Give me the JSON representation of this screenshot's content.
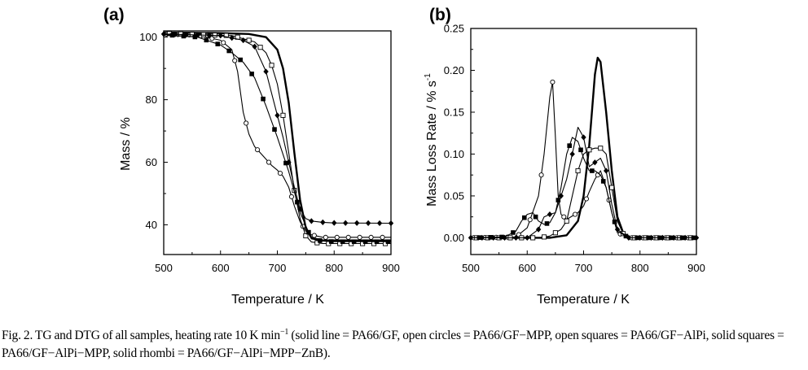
{
  "chart_data": [
    {
      "type": "line",
      "panel_label": "(a)",
      "xlabel": "Temperature / K",
      "ylabel": "Mass / %",
      "xlim": [
        500,
        900
      ],
      "ylim": [
        30.5,
        102
      ],
      "x_ticks": [
        500,
        600,
        700,
        800,
        900
      ],
      "y_ticks": [
        40,
        60,
        80,
        100
      ],
      "x_tick_labels": [
        "500",
        "600",
        "700",
        "800",
        "900"
      ],
      "y_tick_labels": [
        "40",
        "60",
        "80",
        "100"
      ],
      "series": [
        {
          "name": "PA66/GF",
          "marker": "none",
          "x": [
            500,
            600,
            650,
            680,
            700,
            710,
            720,
            730,
            740,
            750,
            760,
            780,
            800,
            900
          ],
          "y": [
            101.5,
            101.3,
            101.0,
            100.0,
            96.0,
            90.0,
            79.0,
            63.0,
            48.0,
            39.0,
            35.8,
            35.0,
            35.0,
            35.0
          ]
        },
        {
          "name": "PA66/GF-MPP",
          "marker": "open-circle",
          "x": [
            500,
            560,
            600,
            620,
            630,
            640,
            650,
            660,
            670,
            680,
            690,
            700,
            710,
            720,
            730,
            740,
            750,
            760,
            780,
            800,
            900
          ],
          "y": [
            101.0,
            100.6,
            99.0,
            96.0,
            89.0,
            76.0,
            69.0,
            65.0,
            63.0,
            61.0,
            59.0,
            57.5,
            55.5,
            52.0,
            46.0,
            41.0,
            38.0,
            36.8,
            36.0,
            36.0,
            36.0
          ]
        },
        {
          "name": "PA66/GF-AlPi",
          "marker": "open-square",
          "x": [
            500,
            620,
            660,
            680,
            690,
            700,
            710,
            720,
            730,
            740,
            750,
            760,
            780,
            800,
            900
          ],
          "y": [
            101.2,
            100.5,
            98.5,
            95.0,
            91.0,
            85.0,
            75.0,
            63.0,
            51.0,
            42.0,
            36.5,
            34.5,
            34.0,
            34.0,
            34.0
          ]
        },
        {
          "name": "PA66/GF-AlPi-MPP",
          "marker": "solid-square",
          "x": [
            500,
            560,
            600,
            620,
            640,
            660,
            680,
            700,
            720,
            740,
            760,
            780,
            800,
            900
          ],
          "y": [
            100.8,
            100.0,
            97.5,
            95.0,
            92.0,
            87.0,
            78.0,
            68.0,
            57.0,
            44.0,
            35.5,
            34.8,
            34.6,
            34.6
          ]
        },
        {
          "name": "PA66/GF-AlPi-MPP-ZnB",
          "marker": "solid-rhombus",
          "x": [
            500,
            600,
            640,
            660,
            680,
            690,
            700,
            710,
            720,
            730,
            740,
            750,
            760,
            780,
            800,
            900
          ],
          "y": [
            101.0,
            100.5,
            99.0,
            97.0,
            89.0,
            82.0,
            75.0,
            68.0,
            60.0,
            52.0,
            45.0,
            42.0,
            41.2,
            40.8,
            40.6,
            40.5
          ]
        }
      ]
    },
    {
      "type": "line",
      "panel_label": "(b)",
      "xlabel": "Temperature / K",
      "ylabel": "Mass Loss Rate / % s",
      "ylabel_superscript": "-1",
      "xlim": [
        500,
        900
      ],
      "ylim": [
        -0.02,
        0.25
      ],
      "x_ticks": [
        500,
        600,
        700,
        800,
        900
      ],
      "y_ticks": [
        0.0,
        0.05,
        0.1,
        0.15,
        0.2,
        0.25
      ],
      "x_tick_labels": [
        "500",
        "600",
        "700",
        "800",
        "900"
      ],
      "y_tick_labels": [
        "0.00",
        "0.05",
        "0.10",
        "0.15",
        "0.20",
        "0.25"
      ],
      "series": [
        {
          "name": "PA66/GF",
          "marker": "none",
          "x": [
            500,
            640,
            670,
            690,
            700,
            710,
            720,
            725,
            730,
            740,
            750,
            760,
            770,
            780,
            900
          ],
          "y": [
            0,
            0.0,
            0.003,
            0.02,
            0.05,
            0.11,
            0.195,
            0.215,
            0.21,
            0.15,
            0.08,
            0.025,
            0.006,
            0.0,
            0
          ]
        },
        {
          "name": "PA66/GF-MPP",
          "marker": "open-circle",
          "x": [
            500,
            580,
            600,
            620,
            630,
            640,
            645,
            650,
            655,
            660,
            670,
            680,
            690,
            700,
            710,
            720,
            730,
            740,
            750,
            760,
            780,
            900
          ],
          "y": [
            0,
            0.001,
            0.012,
            0.05,
            0.1,
            0.168,
            0.186,
            0.12,
            0.05,
            0.028,
            0.022,
            0.026,
            0.03,
            0.038,
            0.055,
            0.07,
            0.08,
            0.06,
            0.03,
            0.006,
            0.0,
            0
          ]
        },
        {
          "name": "PA66/GF-AlPi",
          "marker": "open-square",
          "x": [
            500,
            620,
            640,
            660,
            670,
            680,
            690,
            700,
            710,
            720,
            730,
            740,
            750,
            760,
            770,
            780,
            900
          ],
          "y": [
            0,
            0.0,
            0.002,
            0.01,
            0.02,
            0.05,
            0.08,
            0.1,
            0.105,
            0.107,
            0.107,
            0.1,
            0.06,
            0.02,
            0.005,
            0.0,
            0
          ]
        },
        {
          "name": "PA66/GF-AlPi-MPP",
          "marker": "solid-square",
          "x": [
            500,
            560,
            580,
            590,
            600,
            610,
            620,
            630,
            640,
            650,
            660,
            670,
            680,
            690,
            700,
            710,
            720,
            730,
            740,
            750,
            760,
            780,
            900
          ],
          "y": [
            0,
            0.001,
            0.008,
            0.02,
            0.028,
            0.03,
            0.02,
            0.016,
            0.018,
            0.03,
            0.06,
            0.1,
            0.12,
            0.115,
            0.095,
            0.08,
            0.08,
            0.075,
            0.06,
            0.03,
            0.008,
            0.0,
            0
          ]
        },
        {
          "name": "PA66/GF-AlPi-MPP-ZnB",
          "marker": "solid-rhombus",
          "x": [
            500,
            600,
            620,
            630,
            640,
            650,
            660,
            670,
            680,
            690,
            700,
            710,
            720,
            730,
            740,
            750,
            760,
            780,
            900
          ],
          "y": [
            0,
            0.0,
            0.01,
            0.025,
            0.028,
            0.03,
            0.05,
            0.07,
            0.1,
            0.132,
            0.12,
            0.085,
            0.09,
            0.095,
            0.08,
            0.04,
            0.01,
            0.0,
            0
          ]
        }
      ]
    }
  ],
  "caption": {
    "prefix": "Fig. 2. TG and DTG of all samples, heating rate 10 K min",
    "superscript": "−1",
    "rest": " (solid line = PA66/GF, open circles = PA66/GF−MPP, open squares = PA66/GF−AlPi, solid squares = PA66/GF−AlPi−MPP, solid rhombi = PA66/GF−AlPi−MPP−ZnB)."
  }
}
